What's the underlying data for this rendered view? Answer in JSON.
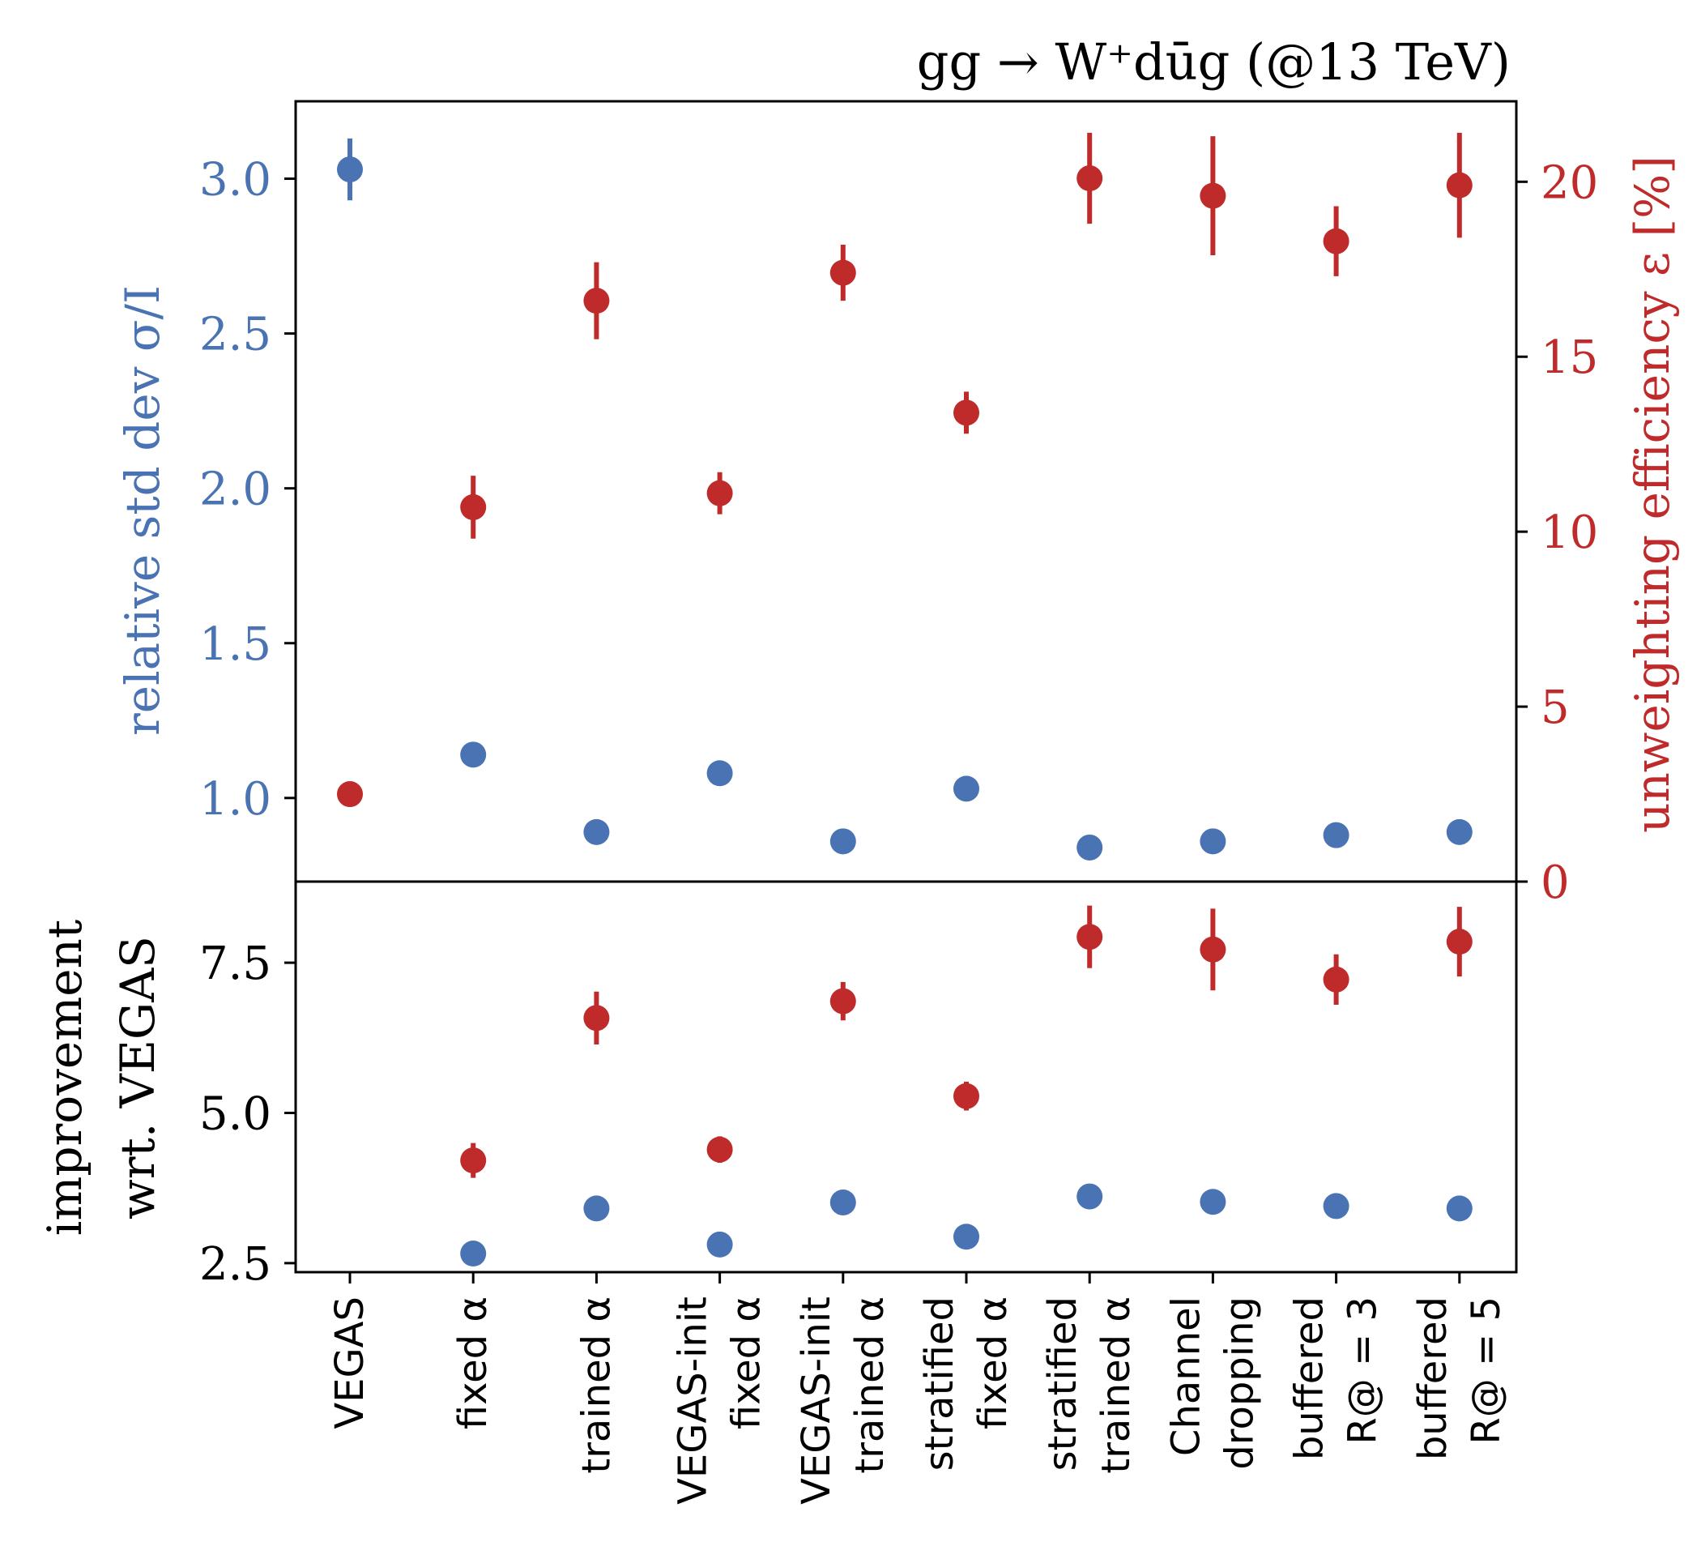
{
  "chart_data": {
    "type": "scatter",
    "title": "gg → W⁺dūg (@13 TeV)",
    "categories": [
      [
        "VEGAS"
      ],
      [
        "fixed α"
      ],
      [
        "trained α"
      ],
      [
        "VEGAS-init",
        "fixed α"
      ],
      [
        "VEGAS-init",
        "trained α"
      ],
      [
        "stratified",
        "fixed α"
      ],
      [
        "stratified",
        "trained α"
      ],
      [
        "Channel",
        "dropping"
      ],
      [
        "buffered",
        "R@ = 3"
      ],
      [
        "buffered",
        "R@ = 5"
      ]
    ],
    "top_panel": {
      "left_axis": {
        "label": "relative std dev σ/I",
        "ylim": [
          0.73,
          3.25
        ],
        "ticks": [
          "1.0",
          "1.5",
          "2.0",
          "2.5",
          "3.0"
        ],
        "tick_values": [
          1.0,
          1.5,
          2.0,
          2.5,
          3.0
        ],
        "color": "#4a73b3"
      },
      "right_axis": {
        "label": "unweighting efficiency ε [%]",
        "ylim": [
          0,
          22.3
        ],
        "ticks": [
          "0",
          "5",
          "10",
          "15",
          "20"
        ],
        "tick_values": [
          0,
          5,
          10,
          15,
          20
        ],
        "color": "#bf2b2b"
      },
      "series": [
        {
          "axis": "left",
          "color": "#4a73b3",
          "values": [
            3.03,
            1.14,
            0.89,
            1.08,
            0.86,
            1.03,
            0.84,
            0.86,
            0.88,
            0.89
          ],
          "errors": [
            0.1,
            0,
            0,
            0,
            0,
            0,
            0,
            0,
            0,
            0
          ]
        },
        {
          "axis": "right",
          "color": "#bf2b2b",
          "values": [
            2.5,
            10.7,
            16.6,
            11.1,
            17.4,
            13.4,
            20.1,
            19.6,
            18.3,
            19.9
          ],
          "errors": [
            0,
            0.9,
            1.1,
            0.6,
            0.8,
            0.6,
            1.3,
            1.7,
            1.0,
            1.5
          ]
        }
      ]
    },
    "bottom_panel": {
      "ylabel": [
        "improvement",
        "wrt. VEGAS"
      ],
      "ylim": [
        2.35,
        8.85
      ],
      "ticks": [
        "2.5",
        "5.0",
        "7.5"
      ],
      "tick_values": [
        2.5,
        5.0,
        7.5
      ],
      "series": [
        {
          "color": "#4a73b3",
          "values": [
            null,
            2.66,
            3.41,
            2.81,
            3.51,
            2.94,
            3.61,
            3.52,
            3.45,
            3.41
          ],
          "errors": [
            0,
            0,
            0,
            0,
            0,
            0,
            0,
            0,
            0,
            0
          ]
        },
        {
          "color": "#bf2b2b",
          "values": [
            null,
            4.21,
            6.58,
            4.39,
            6.86,
            5.28,
            7.93,
            7.72,
            7.22,
            7.85
          ],
          "errors": [
            0,
            0.29,
            0.44,
            0.22,
            0.32,
            0.24,
            0.52,
            0.68,
            0.42,
            0.58
          ]
        }
      ]
    }
  }
}
